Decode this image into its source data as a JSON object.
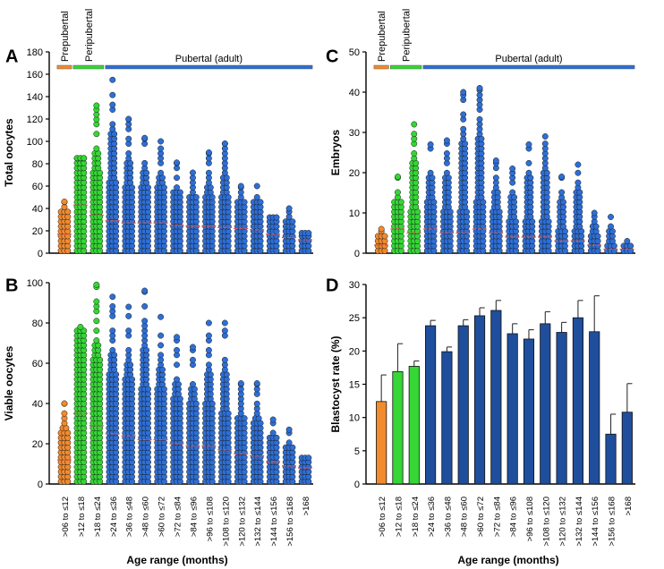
{
  "figure": {
    "x_axis_title": "Age range (months)",
    "x_categories": [
      ">06 to ≤12",
      ">12 to ≤18",
      ">18 to ≤24",
      ">24 to ≤36",
      ">36 to ≤48",
      ">48 to ≤60",
      ">60 to ≤72",
      ">72 to ≤84",
      ">84 to ≤96",
      ">96 to ≤108",
      ">108 to ≤120",
      ">120 to ≤132",
      ">132 to ≤144",
      ">144 to ≤156",
      ">156 to ≤168",
      ">168"
    ],
    "phase_labels": [
      "Prepubertal",
      "Peripubertal",
      "Pubertal (adult)"
    ]
  },
  "colors": {
    "prepubertal": "#f28a2e",
    "peripubertal": "#35d635",
    "pubertal": "#2e6fd6",
    "bar_pubertal": "#1f4e9c",
    "mean_line": "#d9534f"
  },
  "chart_data": [
    {
      "panel": "A",
      "type": "scatter",
      "ylabel": "Total oocytes",
      "ylim": [
        0,
        180
      ],
      "yticks": [
        0,
        20,
        40,
        60,
        80,
        100,
        120,
        140,
        160,
        180
      ],
      "max_values": [
        46,
        85,
        132,
        155,
        120,
        103,
        100,
        81,
        72,
        90,
        98,
        60,
        60,
        32,
        40,
        18
      ],
      "mean_values": [
        17,
        43,
        34,
        29,
        27,
        27,
        27,
        25,
        24,
        24,
        23,
        22,
        21,
        17,
        14,
        12
      ]
    },
    {
      "panel": "B",
      "type": "scatter",
      "ylabel": "Viable oocytes",
      "ylim": [
        0,
        100
      ],
      "yticks": [
        0,
        20,
        40,
        60,
        80,
        100
      ],
      "max_values": [
        40,
        78,
        99,
        93,
        88,
        96,
        83,
        73,
        68,
        80,
        80,
        50,
        50,
        32,
        27,
        13
      ],
      "mean_values": [
        12,
        35,
        29,
        25,
        24,
        22,
        22,
        20,
        19,
        19,
        17,
        15,
        14,
        11,
        9,
        8
      ]
    },
    {
      "panel": "C",
      "type": "scatter",
      "ylabel": "Embryos",
      "ylim": [
        0,
        50
      ],
      "yticks": [
        0,
        10,
        20,
        30,
        40,
        50
      ],
      "max_values": [
        6,
        19,
        32,
        27,
        28,
        40,
        41,
        23,
        21,
        27,
        29,
        19,
        22,
        10,
        9,
        3
      ],
      "mean_values": [
        2,
        6,
        5,
        6,
        5,
        5,
        6,
        5,
        4,
        4,
        4,
        3,
        3,
        2,
        1,
        1
      ]
    },
    {
      "panel": "D",
      "type": "bar",
      "ylabel": "Blastocyst rate (%)",
      "ylim": [
        0,
        30
      ],
      "yticks": [
        0,
        5,
        10,
        15,
        20,
        25,
        30
      ],
      "values": [
        12.4,
        16.9,
        17.7,
        23.8,
        19.9,
        23.8,
        25.3,
        26.1,
        22.6,
        21.8,
        24.1,
        22.8,
        25.0,
        22.9,
        7.5,
        10.8
      ],
      "errors": [
        4.0,
        4.2,
        0.8,
        0.8,
        0.7,
        0.9,
        1.2,
        1.5,
        1.5,
        1.4,
        1.8,
        1.5,
        2.6,
        5.4,
        3.0,
        4.3
      ]
    }
  ]
}
